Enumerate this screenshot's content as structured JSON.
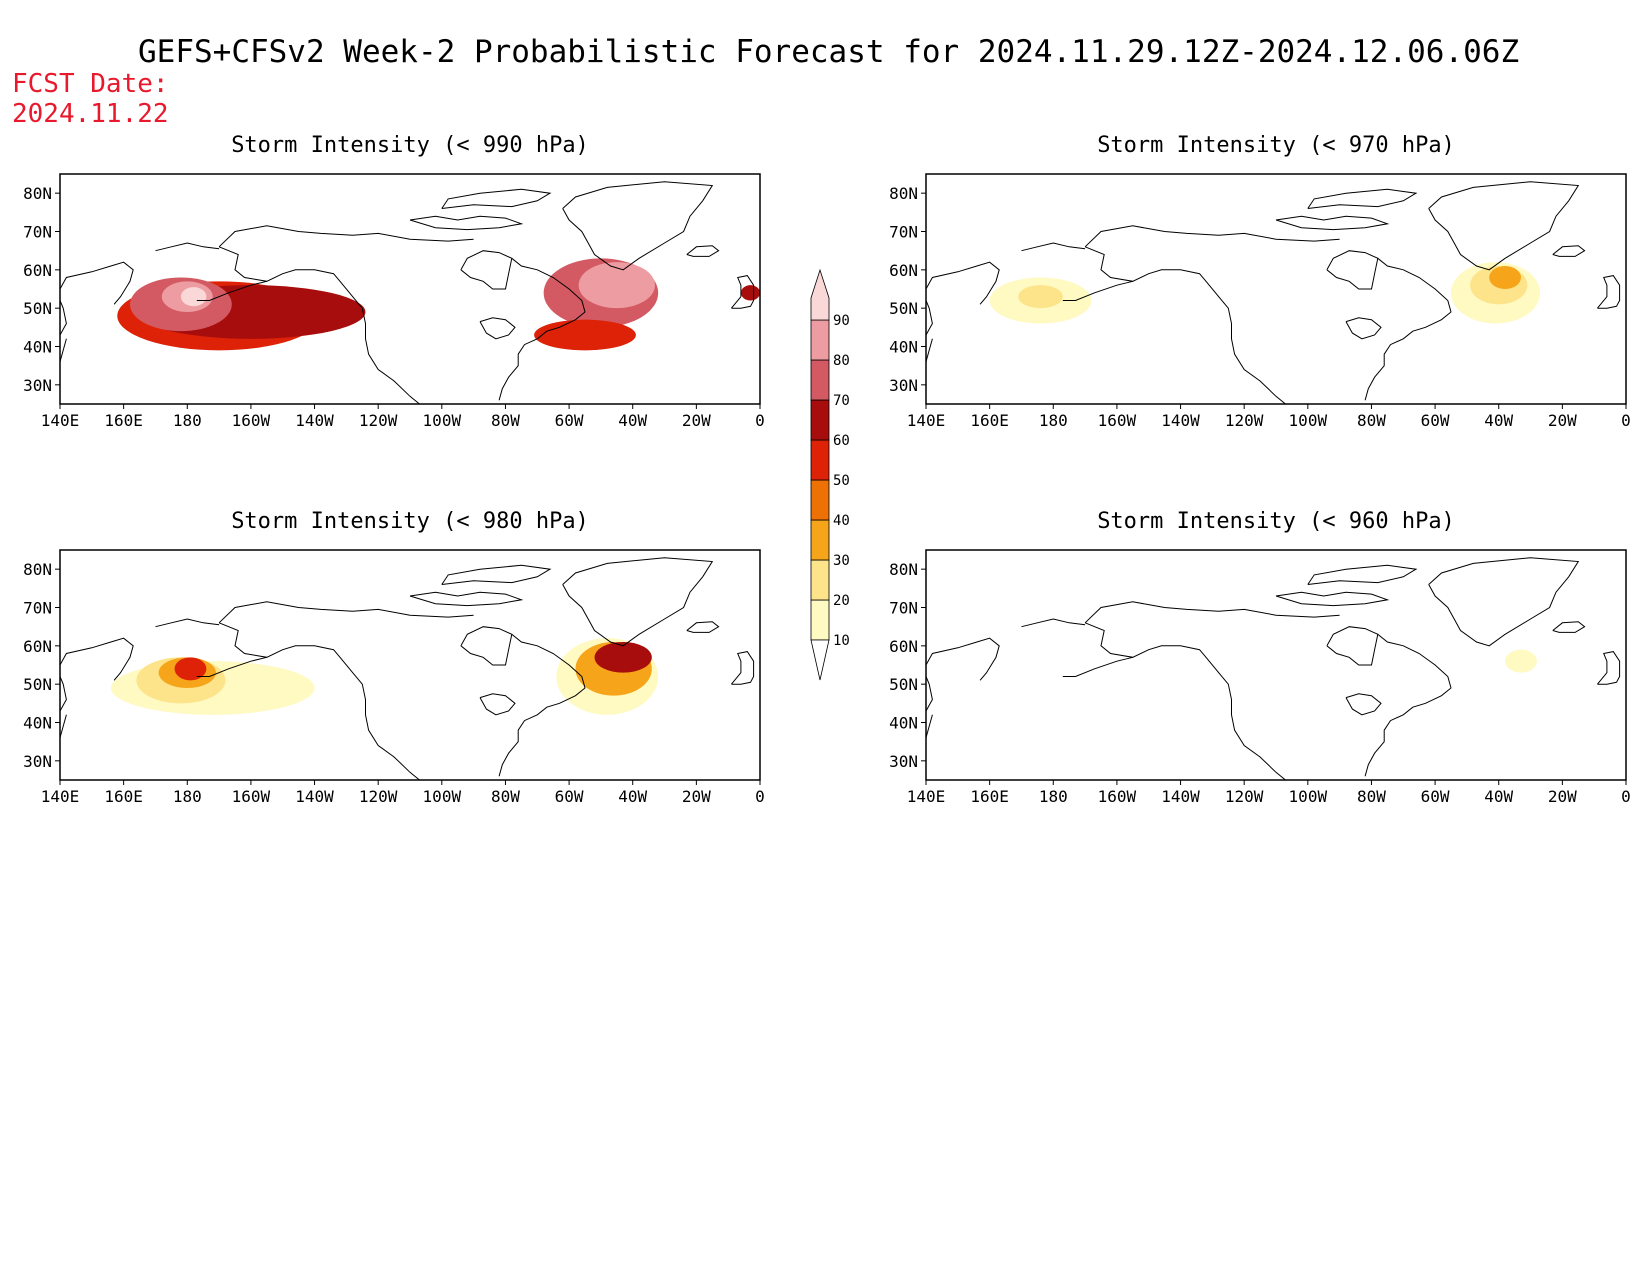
{
  "title": "GEFS+CFSv2 Week-2 Probabilistic Forecast for 2024.11.29.12Z-2024.12.06.06Z",
  "fcst_date_label": "FCST Date:",
  "fcst_date_value": "2024.11.22",
  "x_ticks": [
    "140E",
    "160E",
    "180",
    "160W",
    "140W",
    "120W",
    "100W",
    "80W",
    "60W",
    "40W",
    "20W",
    "0"
  ],
  "y_ticks": [
    "80N",
    "70N",
    "60N",
    "50N",
    "40N",
    "30N"
  ],
  "lon_range": [
    140,
    360
  ],
  "lat_range": [
    25,
    85
  ],
  "colorbar": {
    "levels": [
      "10",
      "20",
      "30",
      "40",
      "50",
      "60",
      "70",
      "80",
      "90"
    ],
    "colors": [
      "#fff9c2",
      "#fde38a",
      "#f6a51a",
      "#ee7105",
      "#dd2208",
      "#a80d0d",
      "#d35a63",
      "#ed9ca2",
      "#fad8d8"
    ]
  },
  "panels": [
    {
      "title": "Storm Intensity (< 990 hPa)",
      "blobs": [
        {
          "lon": 190,
          "lat": 48,
          "rlon": 32,
          "rlat": 9,
          "level": 4
        },
        {
          "lon": 200,
          "lat": 49,
          "rlon": 36,
          "rlat": 7,
          "level": 5
        },
        {
          "lon": 178,
          "lat": 51,
          "rlon": 16,
          "rlat": 7,
          "level": 6
        },
        {
          "lon": 180,
          "lat": 53,
          "rlon": 8,
          "rlat": 4,
          "level": 7
        },
        {
          "lon": 182,
          "lat": 53,
          "rlon": 4,
          "rlat": 2.5,
          "level": 8
        },
        {
          "lon": 310,
          "lat": 54,
          "rlon": 18,
          "rlat": 9,
          "level": 6
        },
        {
          "lon": 315,
          "lat": 56,
          "rlon": 12,
          "rlat": 6,
          "level": 7
        },
        {
          "lon": 305,
          "lat": 43,
          "rlon": 16,
          "rlat": 4,
          "level": 4
        },
        {
          "lon": 357,
          "lat": 54,
          "rlon": 3,
          "rlat": 2,
          "level": 5
        }
      ]
    },
    {
      "title": "Storm Intensity (< 970 hPa)",
      "blobs": [
        {
          "lon": 176,
          "lat": 52,
          "rlon": 16,
          "rlat": 6,
          "level": 0
        },
        {
          "lon": 176,
          "lat": 53,
          "rlon": 7,
          "rlat": 3,
          "level": 1
        },
        {
          "lon": 319,
          "lat": 54,
          "rlon": 14,
          "rlat": 8,
          "level": 0
        },
        {
          "lon": 320,
          "lat": 56,
          "rlon": 9,
          "rlat": 5,
          "level": 1
        },
        {
          "lon": 322,
          "lat": 58,
          "rlon": 5,
          "rlat": 3,
          "level": 2
        }
      ]
    },
    {
      "title": "Storm Intensity (< 980 hPa)",
      "blobs": [
        {
          "lon": 188,
          "lat": 49,
          "rlon": 32,
          "rlat": 7,
          "level": 0
        },
        {
          "lon": 178,
          "lat": 51,
          "rlon": 14,
          "rlat": 6,
          "level": 1
        },
        {
          "lon": 180,
          "lat": 53,
          "rlon": 9,
          "rlat": 4,
          "level": 2
        },
        {
          "lon": 181,
          "lat": 54,
          "rlon": 5,
          "rlat": 3,
          "level": 4
        },
        {
          "lon": 312,
          "lat": 52,
          "rlon": 16,
          "rlat": 10,
          "level": 0
        },
        {
          "lon": 314,
          "lat": 54,
          "rlon": 12,
          "rlat": 7,
          "level": 2
        },
        {
          "lon": 317,
          "lat": 57,
          "rlon": 9,
          "rlat": 4,
          "level": 5
        }
      ]
    },
    {
      "title": "Storm Intensity (< 960 hPa)",
      "blobs": [
        {
          "lon": 327,
          "lat": 56,
          "rlon": 5,
          "rlat": 3,
          "level": 0
        }
      ]
    }
  ]
}
